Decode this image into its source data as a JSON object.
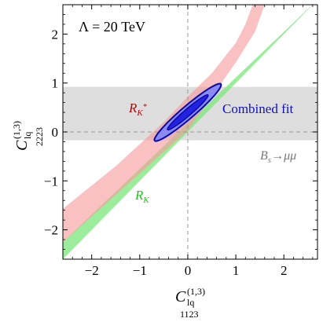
{
  "chart_data": {
    "type": "contour",
    "xlabel": {
      "base": "C",
      "sup": "(1,3)",
      "sub_top": "lq",
      "sub_bottom": "1123"
    },
    "ylabel": {
      "base": "C",
      "sup": "(1,3)",
      "sub_top": "lq",
      "sub_bottom": "2223"
    },
    "xlim": [
      -2.6,
      2.7
    ],
    "ylim": [
      -2.6,
      2.6
    ],
    "x_ticks": [
      -2,
      -1,
      0,
      1,
      2
    ],
    "y_ticks": [
      -2,
      -1,
      0,
      1,
      2
    ],
    "x_tick_labels": [
      "−2",
      "−1",
      "0",
      "1",
      "2"
    ],
    "y_tick_labels": [
      "−2",
      "−1",
      "0",
      "1",
      "2"
    ],
    "scale_label": "Λ = 20 TeV",
    "regions": {
      "Bs_mumu": {
        "label_main": "B",
        "label_sub": "s",
        "label_rest": "→μμ",
        "y_range": [
          -0.17,
          0.92
        ],
        "color": "#dedede"
      },
      "RK": {
        "label_main": "R",
        "label_sub": "K",
        "color": "#7fe87f",
        "lower_edge": [
          [
            -2.6,
            -2.6
          ],
          [
            2.7,
            2.7
          ]
        ],
        "upper_edge": [
          [
            -2.6,
            -2.25
          ],
          [
            2.7,
            2.7
          ]
        ]
      },
      "RKstar": {
        "label_main": "R",
        "label_sub": "K",
        "label_sup": "*",
        "color": "#f59b9b",
        "lower_edge": [
          [
            -2.6,
            -2.25
          ],
          [
            0.0,
            0.03
          ],
          [
            1.0,
            1.42
          ],
          [
            1.4,
            2.05
          ],
          [
            1.6,
            2.6
          ]
        ],
        "upper_edge": [
          [
            -2.6,
            -1.57
          ],
          [
            -1.5,
            -0.7
          ],
          [
            -0.5,
            0.2
          ],
          [
            0.0,
            0.72
          ],
          [
            0.5,
            1.2
          ],
          [
            1.0,
            1.82
          ],
          [
            1.2,
            2.2
          ],
          [
            1.35,
            2.6
          ]
        ]
      }
    },
    "combined_fit": {
      "label": "Combined fit",
      "center": [
        0.0,
        0.4
      ],
      "contour_1sigma": {
        "a": 0.55,
        "b": 0.07,
        "angle_deg": 40
      },
      "contour_2sigma": {
        "a": 0.9,
        "b": 0.13,
        "angle_deg": 40
      },
      "fill_inner": "#2222e0",
      "fill_outer": "#8a8af2",
      "stroke": "#0a0aa8"
    },
    "grid": false
  }
}
